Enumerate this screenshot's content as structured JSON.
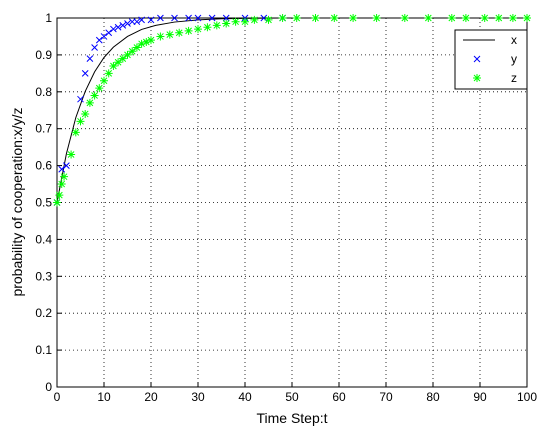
{
  "chart_data": {
    "type": "line",
    "xlabel": "Time Step:t",
    "ylabel": "probability of cooperation:x/y/z",
    "xlim": [
      0,
      100
    ],
    "ylim": [
      0,
      1
    ],
    "xticks": [
      0,
      10,
      20,
      30,
      40,
      50,
      60,
      70,
      80,
      90,
      100
    ],
    "yticks": [
      0,
      0.1,
      0.2,
      0.3,
      0.4,
      0.5,
      0.6,
      0.7,
      0.8,
      0.9,
      1
    ],
    "grid": true,
    "legend": "upper right",
    "series": [
      {
        "name": "x",
        "color": "#000000",
        "marker": "line",
        "x": [
          0,
          2,
          4,
          6,
          8,
          10,
          12,
          15,
          18,
          21,
          25,
          30,
          35,
          40,
          48
        ],
        "values": [
          0.5,
          0.632,
          0.73,
          0.801,
          0.854,
          0.893,
          0.921,
          0.95,
          0.969,
          0.98,
          0.989,
          0.995,
          0.998,
          0.999,
          1
        ]
      },
      {
        "name": "y",
        "color": "#0000ff",
        "marker": "x",
        "x": [
          0,
          1,
          2,
          5,
          6,
          7,
          8,
          9,
          10,
          11,
          12,
          13,
          14,
          15,
          16,
          17,
          18,
          20,
          22,
          25,
          28,
          30,
          33,
          36,
          40,
          44,
          48
        ],
        "values": [
          0.5,
          0.59,
          0.6,
          0.78,
          0.85,
          0.89,
          0.92,
          0.94,
          0.95,
          0.96,
          0.97,
          0.975,
          0.98,
          0.985,
          0.99,
          0.99,
          0.995,
          0.995,
          1,
          1,
          1,
          1,
          1,
          1,
          1,
          1,
          1
        ]
      },
      {
        "name": "z",
        "color": "#00ff00",
        "marker": "asterisk",
        "x": [
          0,
          0.5,
          1,
          1.5,
          3,
          4,
          5,
          6,
          7,
          8,
          9,
          10,
          11,
          12,
          13,
          14,
          15,
          16,
          17,
          18,
          19,
          20,
          22,
          24,
          26,
          28,
          30,
          32,
          34,
          36,
          38,
          40,
          42,
          45,
          48,
          51,
          55,
          59,
          63,
          68,
          74,
          79,
          84,
          87,
          91,
          94,
          97,
          100
        ],
        "values": [
          0.5,
          0.52,
          0.55,
          0.57,
          0.63,
          0.69,
          0.72,
          0.74,
          0.77,
          0.79,
          0.81,
          0.83,
          0.85,
          0.87,
          0.88,
          0.89,
          0.9,
          0.91,
          0.92,
          0.93,
          0.935,
          0.94,
          0.95,
          0.955,
          0.96,
          0.965,
          0.97,
          0.975,
          0.98,
          0.985,
          0.99,
          0.99,
          0.995,
          0.995,
          1,
          1,
          1,
          1,
          1,
          1,
          1,
          1,
          1,
          1,
          1,
          1,
          1,
          1
        ]
      }
    ]
  }
}
